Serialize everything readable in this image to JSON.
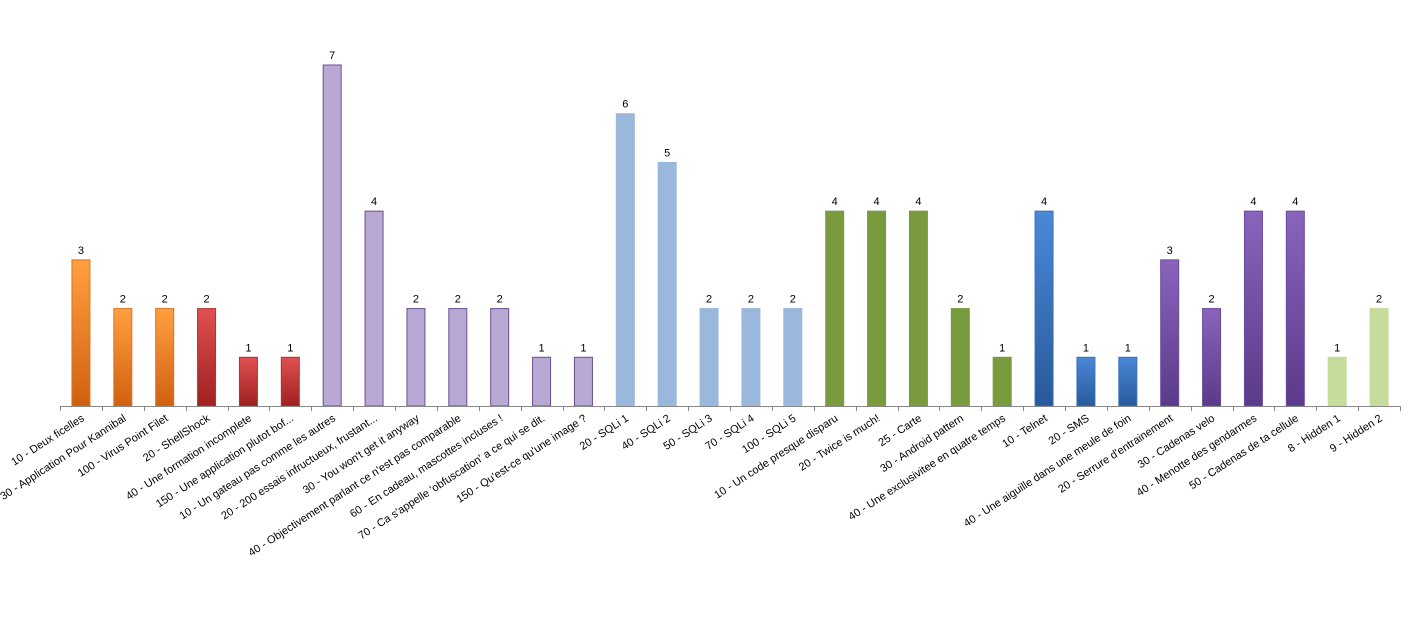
{
  "chart_data": {
    "type": "bar",
    "title": "",
    "xlabel": "",
    "ylabel": "",
    "ylim": [
      0,
      7
    ],
    "grid": false,
    "legend": "none",
    "categories": [
      "10 - Deux ficelles",
      "30 - Application Pour Kannibal",
      "100 - Virus Point Filet",
      "20 - ShellShock",
      "40 - Une formation incomplete",
      "150 - Une application plutot bof...",
      "10 - Un gateau pas comme les autres",
      "20 - 200 essais infructueux, frustant...",
      "30 - You won't get it anyway",
      "40 - Objectivement parlant ce n'est pas comparable",
      "60 - En cadeau, mascottes incluses !",
      "70 - Ca s'appelle 'obfuscation' a ce qui se dit.",
      "150 - Qu'est-ce qu'une image ?",
      "20 - SQLi 1",
      "40 - SQLi 2",
      "50 - SQLi 3",
      "70 - SQLi 4",
      "100 - SQLi 5",
      "10 - Un code presque disparu",
      "20 - Twice is much!",
      "25 - Carte",
      "30 - Android pattern",
      "40 - Une exclusivitee en quatre temps",
      "10 - Telnet",
      "20 - SMS",
      "40 - Une aiguille dans une meule de foin",
      "20 - Serrure d'entrainement",
      "30 - Cadenas velo",
      "40 - Menotte des gendarmes",
      "50 - Cadenas de ta cellule",
      "8 - Hidden 1",
      "9 - Hidden 2"
    ],
    "values": [
      3,
      2,
      2,
      2,
      1,
      1,
      7,
      4,
      2,
      2,
      2,
      1,
      1,
      6,
      5,
      2,
      2,
      2,
      4,
      4,
      4,
      2,
      1,
      4,
      1,
      1,
      3,
      2,
      4,
      4,
      1,
      2
    ],
    "groups": [
      0,
      0,
      0,
      1,
      1,
      1,
      2,
      2,
      2,
      2,
      2,
      2,
      2,
      3,
      3,
      3,
      3,
      3,
      4,
      4,
      4,
      4,
      4,
      5,
      5,
      5,
      6,
      6,
      6,
      6,
      7,
      7
    ],
    "group_colors": [
      {
        "top": "#ffa040",
        "bottom": "#d06010",
        "stroke": "#e07020"
      },
      {
        "top": "#e05050",
        "bottom": "#a02020",
        "stroke": "#b83030"
      },
      {
        "top": "#b8a8d4",
        "bottom": "#b8a8d4",
        "stroke": "#6a5090"
      },
      {
        "top": "#9ab8dc",
        "bottom": "#9ab8dc",
        "stroke": "#9ab8dc"
      },
      {
        "top": "#7a9a3e",
        "bottom": "#7a9a3e",
        "stroke": "#7a9a3e"
      },
      {
        "top": "#4a88d8",
        "bottom": "#285a9a",
        "stroke": "#3a70b8"
      },
      {
        "top": "#8a64bc",
        "bottom": "#5a3a8a",
        "stroke": "#6a4a9a"
      },
      {
        "top": "#c6dc9a",
        "bottom": "#c6dc9a",
        "stroke": "#c6dc9a"
      }
    ],
    "axis_color": "#888888"
  }
}
